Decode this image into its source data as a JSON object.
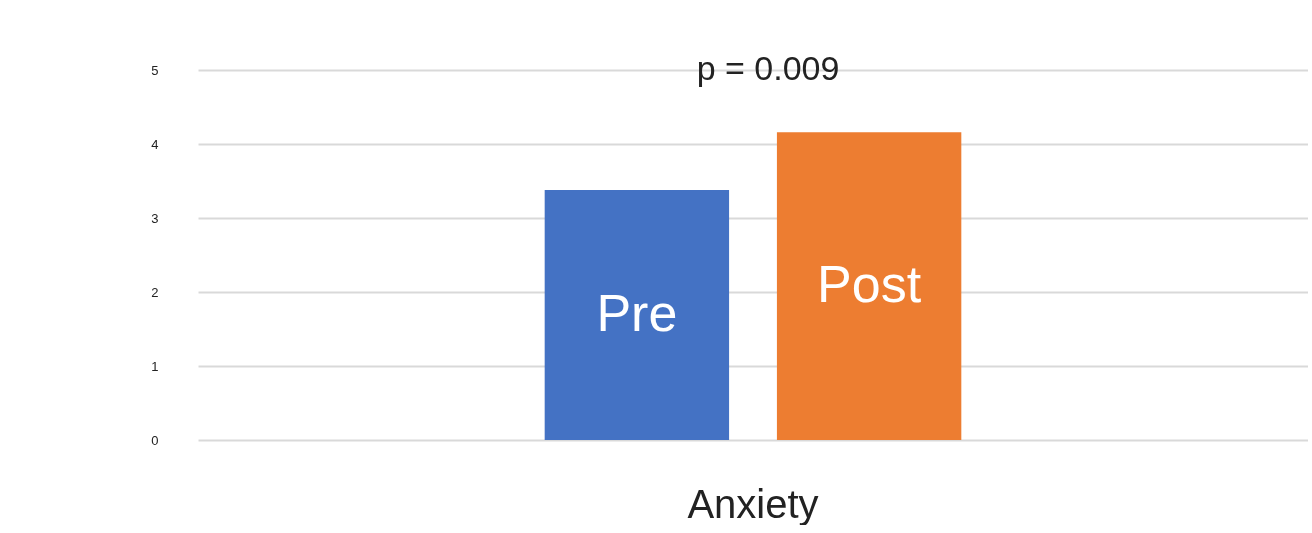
{
  "chart_data": {
    "type": "bar",
    "categories": [
      "Anxiety"
    ],
    "series": [
      {
        "name": "Pre",
        "color": "#4472c4",
        "values": [
          3.38
        ]
      },
      {
        "name": "Post",
        "color": "#ed7d31",
        "values": [
          4.16
        ]
      }
    ],
    "ylim": [
      0,
      5
    ],
    "yticks": [
      {
        "value": 0,
        "label": "0"
      },
      {
        "value": 1,
        "label": "1"
      },
      {
        "value": 2,
        "label": "2"
      },
      {
        "value": 3,
        "label": "3"
      },
      {
        "value": 4,
        "label": "4"
      },
      {
        "value": 5,
        "label": "5"
      }
    ],
    "grid": "y",
    "legend": false,
    "annotations": [
      "p = 0.009"
    ]
  }
}
